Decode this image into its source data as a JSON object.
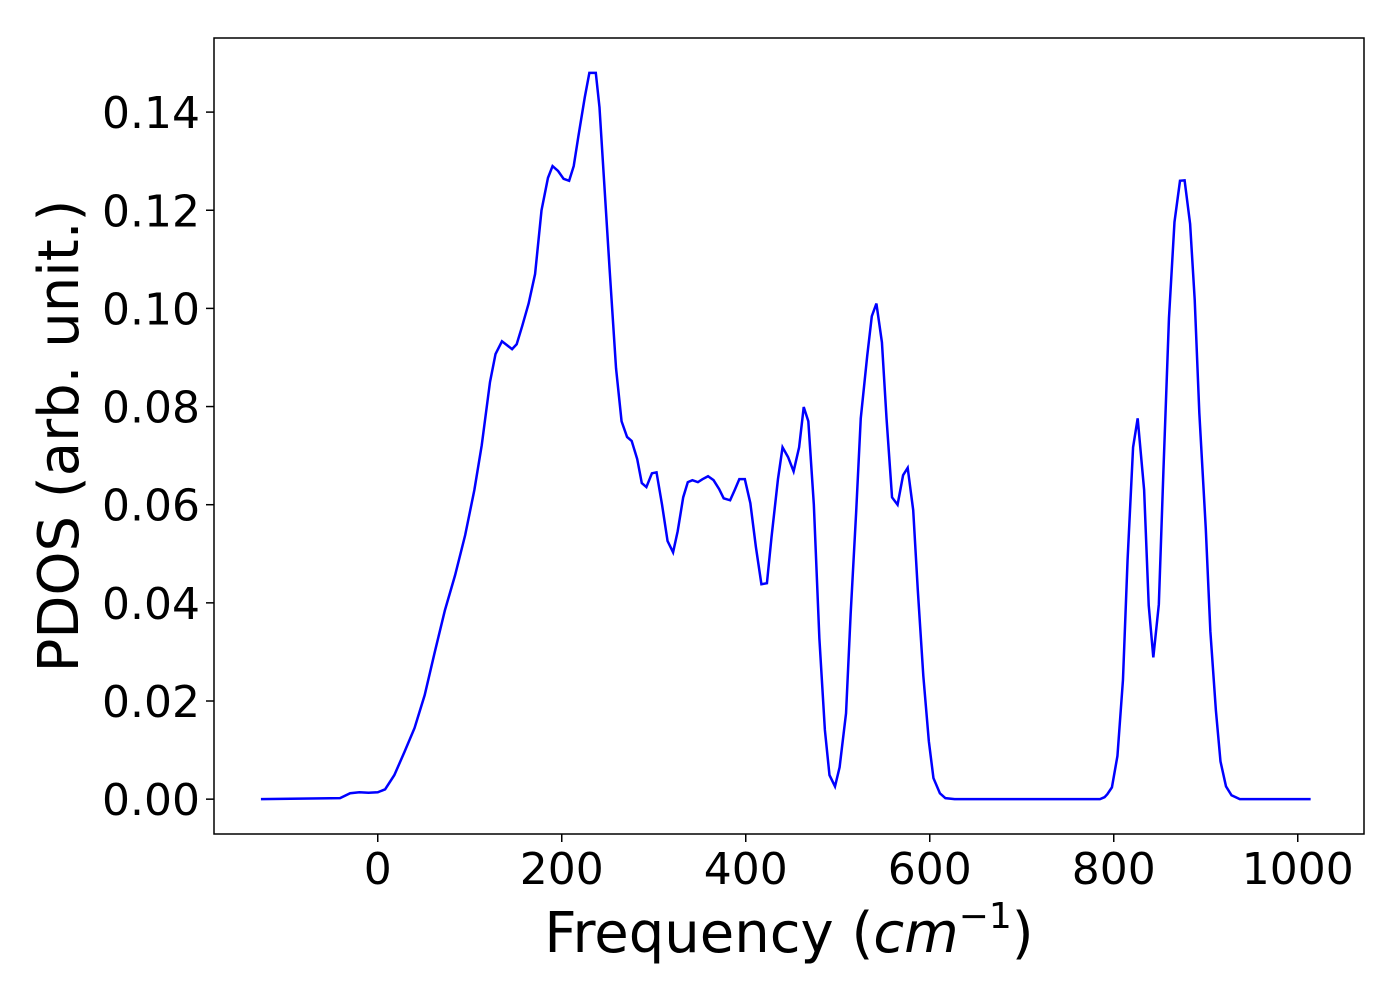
{
  "chart_data": {
    "type": "line",
    "xlabel": [
      "Frequency (",
      "cm",
      "−1",
      ")"
    ],
    "ylabel": "PDOS (arb. unit.)",
    "xlim": [
      -178,
      1072
    ],
    "ylim": [
      -0.0071,
      0.1551
    ],
    "xticks": [
      0,
      200,
      400,
      600,
      800,
      1000
    ],
    "yticks": [
      {
        "value": 0,
        "label": "0.00"
      },
      {
        "value": 0.02,
        "label": "0.02"
      },
      {
        "value": 0.04,
        "label": "0.04"
      },
      {
        "value": 0.06,
        "label": "0.06"
      },
      {
        "value": 0.08,
        "label": "0.08"
      },
      {
        "value": 0.1,
        "label": "0.10"
      },
      {
        "value": 0.12,
        "label": "0.12"
      },
      {
        "value": 0.14,
        "label": "0.14"
      }
    ],
    "series": [
      {
        "color": "#0000ff",
        "x": [
          -127,
          -41,
          -30,
          -20,
          -10,
          0,
          8,
          18,
          29,
          40,
          51,
          62,
          73,
          84,
          95,
          105,
          113,
          122,
          128,
          135,
          146,
          151,
          157,
          164,
          171,
          178,
          185,
          190,
          196,
          202,
          208,
          213,
          218,
          225,
          230,
          237,
          241,
          246,
          252,
          259,
          265,
          271,
          276,
          282,
          287,
          292,
          298,
          303,
          309,
          315,
          321,
          326,
          332,
          337,
          342,
          348,
          353,
          359,
          365,
          371,
          376,
          383,
          388,
          393,
          399,
          405,
          411,
          417,
          423,
          428,
          435,
          440,
          446,
          452,
          458,
          463,
          468,
          474,
          480,
          486,
          491,
          497,
          502,
          509,
          514,
          520,
          525,
          532,
          537,
          542,
          548,
          553,
          559,
          565,
          571,
          576,
          582,
          587,
          593,
          599,
          604,
          611,
          617,
          627,
          785,
          790,
          793,
          798,
          804,
          810,
          815,
          821,
          826,
          833,
          838,
          843,
          849,
          854,
          860,
          866,
          872,
          877,
          883,
          888,
          893,
          900,
          905,
          911,
          916,
          922,
          928,
          937,
          1014
        ],
        "values": [
          0,
          0.0002,
          0.0012,
          0.0014,
          0.0013,
          0.0014,
          0.002,
          0.0049,
          0.0096,
          0.0145,
          0.0212,
          0.03,
          0.0385,
          0.0456,
          0.0538,
          0.063,
          0.0721,
          0.085,
          0.0907,
          0.0933,
          0.0917,
          0.0927,
          0.0964,
          0.101,
          0.107,
          0.12,
          0.1266,
          0.129,
          0.128,
          0.1264,
          0.126,
          0.129,
          0.135,
          0.143,
          0.148,
          0.148,
          0.141,
          0.126,
          0.108,
          0.0878,
          0.077,
          0.0738,
          0.073,
          0.0693,
          0.0644,
          0.0636,
          0.0664,
          0.0666,
          0.06,
          0.0526,
          0.0503,
          0.0546,
          0.0615,
          0.0646,
          0.065,
          0.0646,
          0.0652,
          0.0658,
          0.065,
          0.0632,
          0.0613,
          0.0609,
          0.063,
          0.0652,
          0.0652,
          0.0603,
          0.0514,
          0.0438,
          0.044,
          0.0534,
          0.0652,
          0.0717,
          0.0697,
          0.0668,
          0.0717,
          0.0799,
          0.077,
          0.06,
          0.0328,
          0.0141,
          0.0049,
          0.0026,
          0.0065,
          0.0175,
          0.0377,
          0.0585,
          0.0776,
          0.0903,
          0.0984,
          0.101,
          0.0931,
          0.0776,
          0.0615,
          0.06,
          0.066,
          0.0675,
          0.0589,
          0.0426,
          0.0251,
          0.0118,
          0.0043,
          0.0012,
          0.0002,
          0,
          0,
          0.0004,
          0.001,
          0.0024,
          0.0088,
          0.0243,
          0.0487,
          0.0717,
          0.0776,
          0.063,
          0.0395,
          0.0289,
          0.0397,
          0.067,
          0.098,
          0.1176,
          0.126,
          0.1261,
          0.1172,
          0.1017,
          0.0787,
          0.0552,
          0.0342,
          0.0181,
          0.0077,
          0.0026,
          0.0008,
          0,
          0
        ]
      }
    ]
  }
}
